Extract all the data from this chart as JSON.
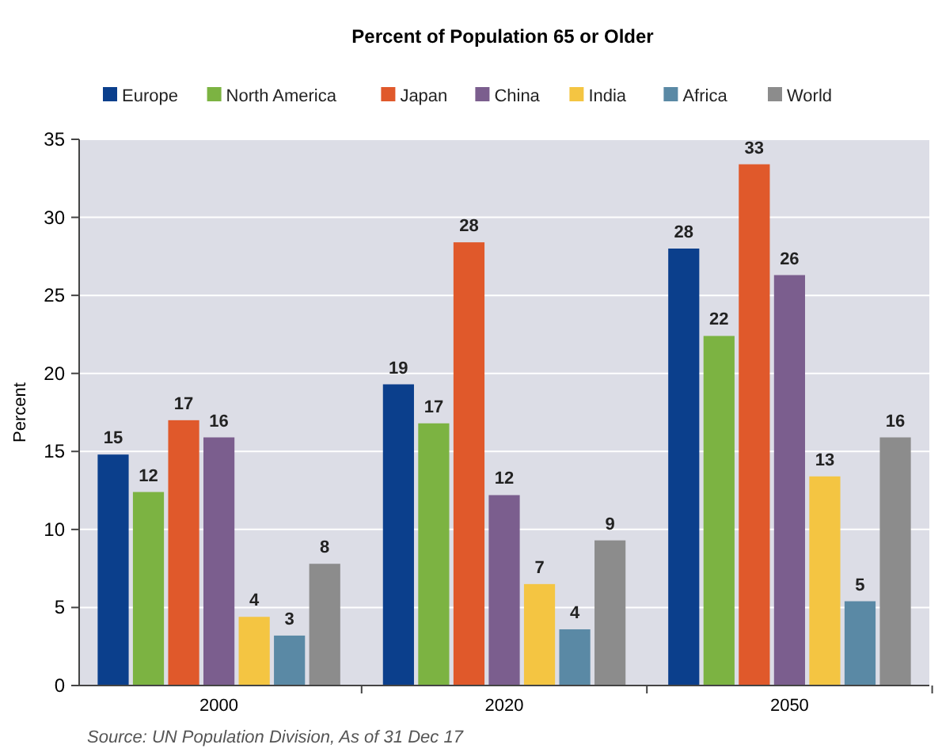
{
  "chart_data": {
    "type": "bar",
    "title": "Percent of Population 65 or Older",
    "ylabel": "Percent",
    "categories": [
      "2000",
      "2020",
      "2050"
    ],
    "series": [
      {
        "name": "Europe",
        "color": "#0b3f8c",
        "values": [
          14.8,
          19.3,
          28.0
        ],
        "value_labels": [
          "15",
          "19",
          "28"
        ]
      },
      {
        "name": "North America",
        "color": "#7cb342",
        "values": [
          12.4,
          16.8,
          22.4
        ],
        "value_labels": [
          "12",
          "17",
          "22"
        ]
      },
      {
        "name": "Japan",
        "color": "#e0592b",
        "values": [
          17.0,
          28.4,
          33.4
        ],
        "value_labels": [
          "17",
          "28",
          "33"
        ]
      },
      {
        "name": "China",
        "color": "#7b5e8e",
        "values": [
          15.9,
          12.2,
          26.3
        ],
        "value_labels": [
          "16",
          "12",
          "26"
        ]
      },
      {
        "name": "India",
        "color": "#f4c542",
        "values": [
          4.4,
          6.5,
          13.4
        ],
        "value_labels": [
          "4",
          "7",
          "13"
        ]
      },
      {
        "name": "Africa",
        "color": "#5a89a5",
        "values": [
          3.2,
          3.6,
          5.4
        ],
        "value_labels": [
          "3",
          "4",
          "5"
        ]
      },
      {
        "name": "World",
        "color": "#8c8c8c",
        "values": [
          7.8,
          9.3,
          15.9
        ],
        "value_labels": [
          "8",
          "9",
          "16"
        ]
      }
    ],
    "ylim": [
      0,
      35
    ],
    "yticks": [
      0,
      5,
      10,
      15,
      20,
      25,
      30,
      35
    ],
    "grid": "y",
    "legend": "top",
    "annotations": [
      "Source: UN Population Division, As of 31 Dec 17"
    ]
  }
}
